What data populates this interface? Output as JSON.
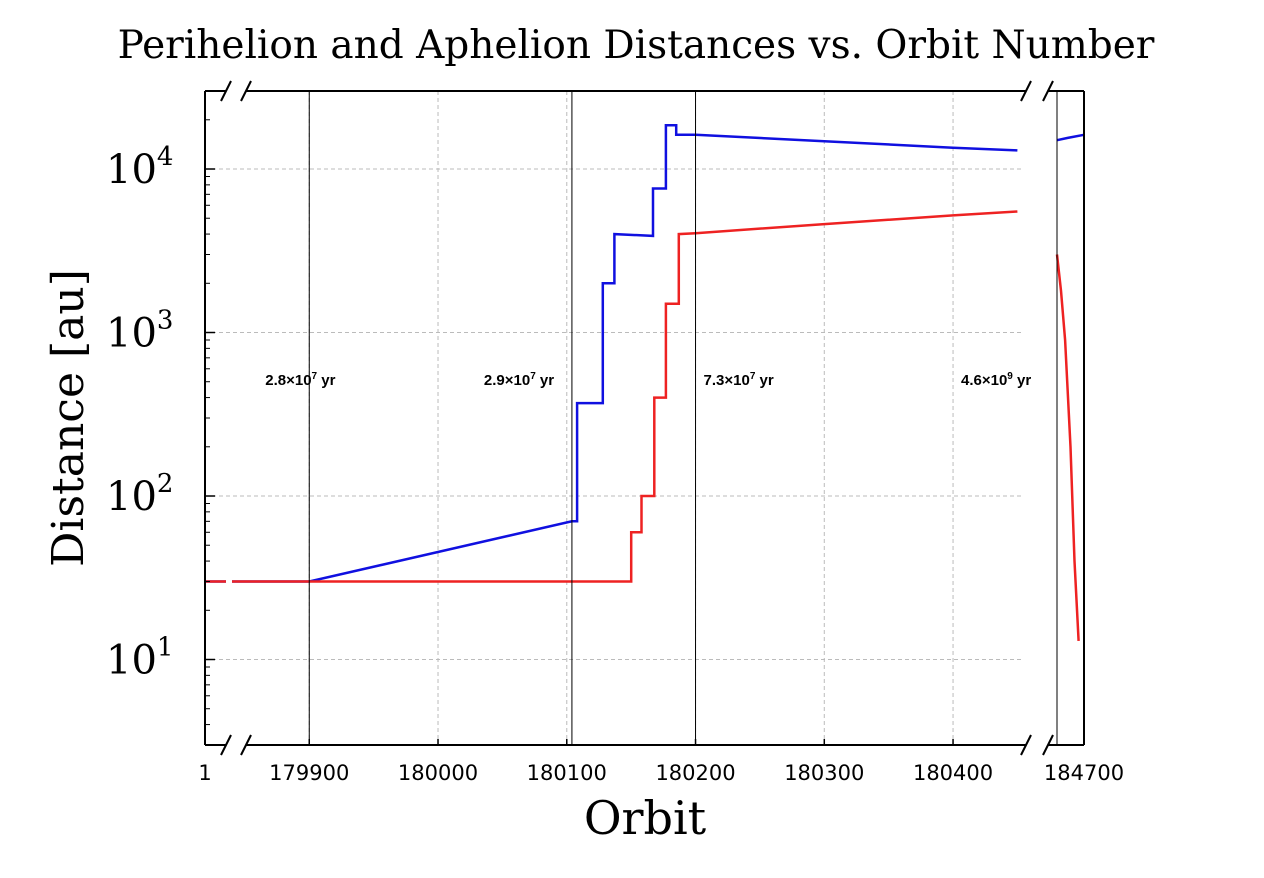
{
  "chart_data": {
    "type": "line",
    "title": "Perihelion and Aphelion Distances vs. Orbit Number",
    "xlabel": "Orbit",
    "ylabel": "Distance [au]",
    "yscale": "log",
    "ylim": [
      3,
      30000
    ],
    "grid": true,
    "broken_x_axis": true,
    "x_ticks": [
      "1",
      "179900",
      "180000",
      "180100",
      "180200",
      "180300",
      "180400",
      "184700"
    ],
    "y_ticks": [
      {
        "base": "10",
        "exp": "1",
        "value": 10
      },
      {
        "base": "10",
        "exp": "2",
        "value": 100
      },
      {
        "base": "10",
        "exp": "3",
        "value": 1000
      },
      {
        "base": "10",
        "exp": "4",
        "value": 10000
      }
    ],
    "segments": [
      {
        "xlim": [
          1,
          10
        ]
      },
      {
        "xlim": [
          179840,
          180452
        ]
      },
      {
        "xlim": [
          184680,
          184700
        ]
      }
    ],
    "series": [
      {
        "color": "#1010e0",
        "role": "aphelion",
        "points": [
          [
            [
              1,
              30
            ],
            [
              8,
              30
            ]
          ],
          [
            [
              179840,
              30
            ],
            [
              179900,
              30
            ],
            [
              180104,
              70
            ],
            [
              180108,
              70
            ],
            [
              180108,
              370
            ],
            [
              180128,
              370
            ],
            [
              180128,
              2000
            ],
            [
              180137,
              2000
            ],
            [
              180137,
              4000
            ],
            [
              180167,
              3900
            ],
            [
              180167,
              7600
            ],
            [
              180177,
              7600
            ],
            [
              180177,
              18500
            ],
            [
              180185,
              18500
            ],
            [
              180185,
              16200
            ],
            [
              180200,
              16200
            ],
            [
              180300,
              14800
            ],
            [
              180400,
              13500
            ],
            [
              180450,
              13000
            ]
          ],
          [
            [
              184680,
              15000
            ],
            [
              184688,
              15500
            ],
            [
              184700,
              16200
            ]
          ]
        ]
      },
      {
        "color": "#ee2222",
        "role": "perihelion",
        "points": [
          [
            [
              1,
              30
            ],
            [
              8,
              30
            ]
          ],
          [
            [
              179840,
              30
            ],
            [
              180150,
              30
            ],
            [
              180150,
              60
            ],
            [
              180158,
              60
            ],
            [
              180158,
              100
            ],
            [
              180168,
              100
            ],
            [
              180168,
              400
            ],
            [
              180177,
              400
            ],
            [
              180177,
              1500
            ],
            [
              180187,
              1500
            ],
            [
              180187,
              4000
            ],
            [
              180200,
              4050
            ],
            [
              180300,
              4600
            ],
            [
              180400,
              5200
            ],
            [
              180450,
              5500
            ]
          ],
          [
            [
              184680,
              3000
            ],
            [
              184683,
              1800
            ],
            [
              184686,
              900
            ],
            [
              184690,
              200
            ],
            [
              184693,
              40
            ],
            [
              184696,
              13
            ]
          ]
        ]
      }
    ],
    "annotations": [
      {
        "mantissa": "2.8×10",
        "exp": "7",
        "unit": " yr",
        "x": 179900
      },
      {
        "mantissa": "2.9×10",
        "exp": "7",
        "unit": " yr",
        "x": 180104
      },
      {
        "mantissa": "7.3×10",
        "exp": "7",
        "unit": " yr",
        "x": 180200
      },
      {
        "mantissa": "4.6×10",
        "exp": "9",
        "unit": " yr",
        "x": 184680
      }
    ]
  }
}
